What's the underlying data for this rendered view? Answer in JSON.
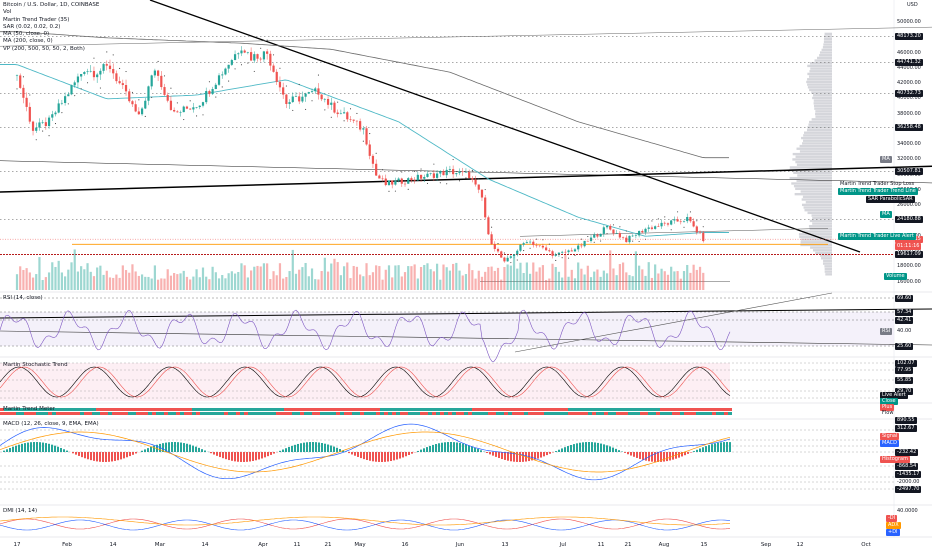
{
  "header": {
    "symbol_title": "Bitcoin / U.S. Dollar, 1D, COINBASE",
    "currency": "USD",
    "indicators": [
      "Vol",
      "Martin Trend Trader (35)",
      "SAR (0.02, 0.02, 0.2)",
      "MA (50, close, 0)",
      "MA (200, close, 0)",
      "VP (200, 500, 50, 50, 2, Both)"
    ]
  },
  "colors": {
    "up": "#26a69a",
    "down": "#ef5350",
    "ma50": "#4fb9c6",
    "ma200": "#6b6b6b",
    "trend": "#000000",
    "orange": "#ff9800",
    "red_level": "#e91e63",
    "rsi_band": "#ede7f6"
  },
  "price_axis": {
    "ticks": [
      "50000.00",
      "48000.00",
      "46000.00",
      "44000.00",
      "42000.00",
      "40000.00",
      "38000.00",
      "36000.00",
      "34000.00",
      "32000.00",
      "30000.00",
      "28000.00",
      "26000.00",
      "24000.00",
      "22000.00",
      "20000.00",
      "18000.00",
      "16000.00"
    ],
    "levels": [
      {
        "text": "48173.20",
        "style": "dark"
      },
      {
        "text": "44741.32",
        "style": "dark"
      },
      {
        "text": "40732.73",
        "style": "dark"
      },
      {
        "text": "36258.48",
        "style": "dark"
      },
      {
        "text": "30507.81",
        "style": "dark"
      },
      {
        "text": "24180.88",
        "style": "dark"
      },
      {
        "text": "21624.15",
        "style": "red"
      },
      {
        "text": "01:11:16",
        "style": "red"
      },
      {
        "text": "19617.09",
        "style": "dark"
      }
    ],
    "tags": [
      {
        "text": "MA",
        "style": "gray"
      },
      {
        "text": "Martin Trend Trader Stop Loss",
        "style": "plain"
      },
      {
        "text": "Martin Trend Trader Trend Line",
        "style": "teal"
      },
      {
        "text": "SAR ParabolicSAR",
        "style": "dark"
      },
      {
        "text": "MA",
        "style": "teal"
      },
      {
        "text": "Martin Trend Trader Live Alert",
        "style": "teal"
      },
      {
        "text": "Volume",
        "style": "teal"
      }
    ]
  },
  "rsi": {
    "title": "RSI (14, close)",
    "labels": [
      "69.60",
      "57.34",
      "42.41",
      "40.00",
      "25.60"
    ],
    "tag": "RSI"
  },
  "stoch": {
    "title": "Martin Stochastic Trend",
    "labels": [
      "102.07",
      "77.95",
      "55.85",
      "29.70",
      "0.00"
    ],
    "tags": [
      "Live Alert",
      "Close",
      "Plus",
      "Flow"
    ]
  },
  "mtm": {
    "title": "Martin Trend Meter"
  },
  "macd": {
    "title": "MACD (12, 26, close, 9, EMA, EMA)",
    "labels": [
      "890.55",
      "312.67",
      "-232.42",
      "-868.54",
      "-1435.17",
      "-2000.00",
      "-2497.70"
    ],
    "tags": [
      "Signal",
      "MACD",
      "Histogram"
    ]
  },
  "dmi": {
    "title": "DMI (14, 14)",
    "labels": [
      "40.0000"
    ],
    "tags": [
      "-DI",
      "ADX",
      "+DI"
    ]
  },
  "time_axis": [
    "17",
    "Feb",
    "14",
    "Mar",
    "14",
    "Apr",
    "11",
    "21",
    "May",
    "16",
    "Jun",
    "13",
    "Jul",
    "11",
    "21",
    "Aug",
    "15",
    "Sep",
    "12",
    "Oct"
  ],
  "chart_data": {
    "type": "candlestick",
    "title": "Bitcoin / U.S. Dollar, 1D, COINBASE",
    "timeframe": "1D",
    "currency": "USD",
    "x_range": [
      "2022-01-17",
      "2022-10-10"
    ],
    "ylim": [
      16000,
      50000
    ],
    "grid": false,
    "key_levels": [
      48173.2,
      44741.32,
      40732.73,
      36258.48,
      30507.81,
      24180.88,
      21624.15,
      19617.09
    ],
    "last_price": 21624.15,
    "price_path": [
      {
        "date": "2022-01-17",
        "close": 43000
      },
      {
        "date": "2022-01-22",
        "close": 36000
      },
      {
        "date": "2022-01-27",
        "close": 37000
      },
      {
        "date": "2022-02-07",
        "close": 44000
      },
      {
        "date": "2022-02-10",
        "close": 43500
      },
      {
        "date": "2022-02-15",
        "close": 44200
      },
      {
        "date": "2022-02-24",
        "close": 37500
      },
      {
        "date": "2022-03-01",
        "close": 44000
      },
      {
        "date": "2022-03-07",
        "close": 38000
      },
      {
        "date": "2022-03-15",
        "close": 39500
      },
      {
        "date": "2022-03-28",
        "close": 47000
      },
      {
        "date": "2022-03-31",
        "close": 45500
      },
      {
        "date": "2022-04-05",
        "close": 46000
      },
      {
        "date": "2022-04-11",
        "close": 39500
      },
      {
        "date": "2022-04-21",
        "close": 41000
      },
      {
        "date": "2022-04-25",
        "close": 39000
      },
      {
        "date": "2022-05-05",
        "close": 36000
      },
      {
        "date": "2022-05-09",
        "close": 30000
      },
      {
        "date": "2022-05-12",
        "close": 28800
      },
      {
        "date": "2022-05-20",
        "close": 29500
      },
      {
        "date": "2022-06-01",
        "close": 30500
      },
      {
        "date": "2022-06-07",
        "close": 30000
      },
      {
        "date": "2022-06-11",
        "close": 27000
      },
      {
        "date": "2022-06-13",
        "close": 22000
      },
      {
        "date": "2022-06-18",
        "close": 18500
      },
      {
        "date": "2022-06-25",
        "close": 21500
      },
      {
        "date": "2022-07-04",
        "close": 19500
      },
      {
        "date": "2022-07-11",
        "close": 20500
      },
      {
        "date": "2022-07-20",
        "close": 23200
      },
      {
        "date": "2022-07-26",
        "close": 21500
      },
      {
        "date": "2022-08-01",
        "close": 23000
      },
      {
        "date": "2022-08-14",
        "close": 24300
      },
      {
        "date": "2022-08-19",
        "close": 21624
      }
    ],
    "ma50_path": [
      {
        "date": "2022-01-17",
        "value": 44500
      },
      {
        "date": "2022-02-14",
        "value": 40000
      },
      {
        "date": "2022-03-14",
        "value": 40500
      },
      {
        "date": "2022-04-11",
        "value": 42500
      },
      {
        "date": "2022-05-16",
        "value": 37000
      },
      {
        "date": "2022-06-13",
        "value": 29500
      },
      {
        "date": "2022-07-11",
        "value": 24500
      },
      {
        "date": "2022-08-01",
        "value": 22000
      },
      {
        "date": "2022-08-19",
        "value": 22500
      }
    ],
    "ma200_path": [
      {
        "date": "2022-01-17",
        "value": 48800
      },
      {
        "date": "2022-02-14",
        "value": 48000
      },
      {
        "date": "2022-03-28",
        "value": 47300
      },
      {
        "date": "2022-04-25",
        "value": 46500
      },
      {
        "date": "2022-06-01",
        "value": 43500
      },
      {
        "date": "2022-07-11",
        "value": 37000
      },
      {
        "date": "2022-08-19",
        "value": 32300
      }
    ],
    "volume_profile_peak_price": 30507.81
  }
}
